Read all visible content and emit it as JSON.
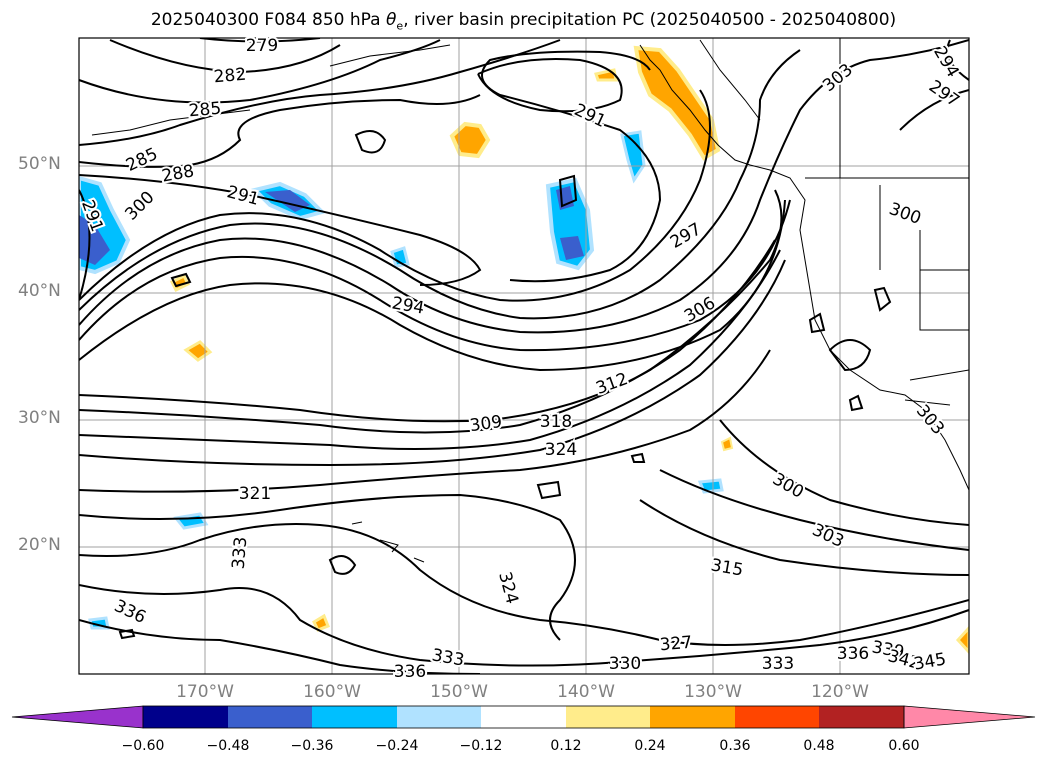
{
  "title": {
    "prefix": "2025040300 F084 850 hPa ",
    "symbol": "θ",
    "subscript": "e",
    "suffix": ", river basin precipitation PC (2025040500 - 2025040800)"
  },
  "lat_labels": [
    "50°N",
    "40°N",
    "30°N",
    "20°N"
  ],
  "lon_labels": [
    "170°W",
    "160°W",
    "150°W",
    "140°W",
    "130°W",
    "120°W"
  ],
  "colorbar": {
    "ticks": [
      "−0.60",
      "−0.48",
      "−0.36",
      "−0.24",
      "−0.12",
      "0.12",
      "0.24",
      "0.36",
      "0.48",
      "0.60"
    ],
    "colors": [
      "#9932cc",
      "#00008b",
      "#3a5fcd",
      "#00bfff",
      "#b0e2ff",
      "#ffffff",
      "#ffec8b",
      "#ffa500",
      "#ff4500",
      "#b22222",
      "#ff88a8"
    ]
  },
  "contour_labels": [
    "279",
    "282",
    "285",
    "285",
    "288",
    "291",
    "291",
    "291",
    "294",
    "294",
    "297",
    "297",
    "300",
    "300",
    "300",
    "303",
    "303",
    "303",
    "306",
    "309",
    "312",
    "315",
    "318",
    "321",
    "324",
    "324",
    "327",
    "330",
    "333",
    "333",
    "333",
    "336",
    "336",
    "336",
    "339",
    "342",
    "345"
  ]
}
